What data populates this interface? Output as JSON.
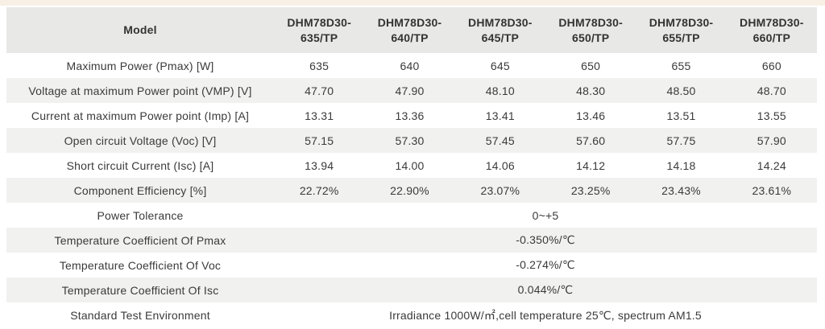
{
  "colors": {
    "top_strip_bg": "#f8efe5",
    "header_bg": "#e8e8e6",
    "shaded_row_bg": "#f1f1f0",
    "white_row_bg": "#ffffff",
    "text": "#3a3a3a"
  },
  "table": {
    "header": {
      "model_label": "Model",
      "models": [
        {
          "line1": "DHM78D30-",
          "line2": "635/TP"
        },
        {
          "line1": "DHM78D30-",
          "line2": "640/TP"
        },
        {
          "line1": "DHM78D30-",
          "line2": "645/TP"
        },
        {
          "line1": "DHM78D30-",
          "line2": "650/TP"
        },
        {
          "line1": "DHM78D30-",
          "line2": "655/TP"
        },
        {
          "line1": "DHM78D30-",
          "line2": "660/TP"
        }
      ]
    },
    "rows": [
      {
        "label": "Maximum Power (Pmax) [W]",
        "shaded": false,
        "values": [
          "635",
          "640",
          "645",
          "650",
          "655",
          "660"
        ]
      },
      {
        "label": "Voltage at maximum Power point (VMP) [V]",
        "shaded": true,
        "values": [
          "47.70",
          "47.90",
          "48.10",
          "48.30",
          "48.50",
          "48.70"
        ]
      },
      {
        "label": "Current at maximum Power point (Imp) [A]",
        "shaded": false,
        "values": [
          "13.31",
          "13.36",
          "13.41",
          "13.46",
          "13.51",
          "13.55"
        ]
      },
      {
        "label": "Open circuit Voltage (Voc) [V]",
        "shaded": true,
        "values": [
          "57.15",
          "57.30",
          "57.45",
          "57.60",
          "57.75",
          "57.90"
        ]
      },
      {
        "label": "Short circuit Current (Isc) [A]",
        "shaded": false,
        "values": [
          "13.94",
          "14.00",
          "14.06",
          "14.12",
          "14.18",
          "14.24"
        ]
      },
      {
        "label": "Component Efficiency [%]",
        "shaded": true,
        "values": [
          "22.72%",
          "22.90%",
          "23.07%",
          "23.25%",
          "23.43%",
          "23.61%"
        ]
      },
      {
        "label": "Power Tolerance",
        "shaded": false,
        "merged_value": "0~+5"
      },
      {
        "label": "Temperature Coefficient Of Pmax",
        "shaded": true,
        "merged_value": "-0.350%/℃"
      },
      {
        "label": "Temperature Coefficient Of Voc",
        "shaded": false,
        "merged_value": "-0.274%/℃"
      },
      {
        "label": "Temperature Coefficient Of Isc",
        "shaded": true,
        "merged_value": "0.044%/℃"
      },
      {
        "label": "Standard Test Environment",
        "shaded": false,
        "merged_value": "Irradiance 1000W/㎡,cell temperature 25℃, spectrum AM1.5"
      }
    ]
  }
}
